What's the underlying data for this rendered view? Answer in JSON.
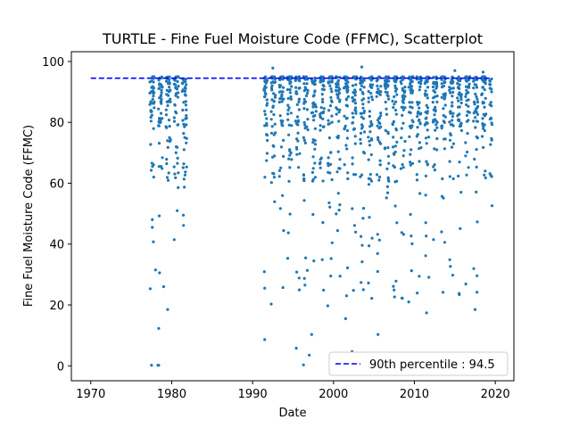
{
  "chart_data": {
    "type": "scatter",
    "title": "TURTLE - Fine Fuel Moisture Code (FFMC), Scatterplot",
    "xlabel": "Date",
    "ylabel": "Fine Fuel Moisture Code (FFMC)",
    "xlim": [
      1967.6,
      2022.3
    ],
    "ylim": [
      -4.9,
      103.2
    ],
    "xticks": [
      1970,
      1980,
      1990,
      2000,
      2010,
      2020
    ],
    "yticks": [
      0,
      20,
      40,
      60,
      80,
      100
    ],
    "grid": false,
    "legend_position": "lower right",
    "series": [
      {
        "name": "",
        "color": "#1f77b4",
        "marker": "point",
        "active_periods": [
          [
            1977.3,
            1982.0
          ],
          [
            1991.4,
            2019.6
          ]
        ],
        "typical_range": [
          60,
          95
        ],
        "notable_points": [
          {
            "x": 1977.5,
            "y": 0.2
          },
          {
            "x": 1978.3,
            "y": 0.2
          },
          {
            "x": 1978.4,
            "y": 0.2
          },
          {
            "x": 1978.4,
            "y": 12.3
          },
          {
            "x": 1979.5,
            "y": 18.5
          },
          {
            "x": 1978.0,
            "y": 31.5
          },
          {
            "x": 1979.0,
            "y": 26.0
          },
          {
            "x": 1977.6,
            "y": 45.5
          },
          {
            "x": 1977.6,
            "y": 48.0
          },
          {
            "x": 1991.5,
            "y": 8.6
          },
          {
            "x": 1991.5,
            "y": 25.5
          },
          {
            "x": 1992.3,
            "y": 20.3
          },
          {
            "x": 1995.4,
            "y": 5.8
          },
          {
            "x": 1996.3,
            "y": 0.3
          },
          {
            "x": 1997.0,
            "y": 3.5
          },
          {
            "x": 1997.3,
            "y": 10.3
          },
          {
            "x": 1999.3,
            "y": 19.7
          },
          {
            "x": 2001.5,
            "y": 15.5
          },
          {
            "x": 2002.3,
            "y": 4.7
          },
          {
            "x": 2005.5,
            "y": 10.3
          },
          {
            "x": 2009.3,
            "y": 21.0
          },
          {
            "x": 2011.5,
            "y": 17.4
          },
          {
            "x": 2017.5,
            "y": 18.5
          },
          {
            "x": 2003.5,
            "y": 98.2
          },
          {
            "x": 1992.5,
            "y": 97.8
          },
          {
            "x": 2015.0,
            "y": 97.0
          },
          {
            "x": 2018.5,
            "y": 96.5
          }
        ]
      }
    ],
    "reference_lines": [
      {
        "label": "90th percentile : 94.5",
        "y": 94.5,
        "x_range": [
          1970,
          2019.6
        ],
        "color": "#0000ff",
        "style": "dashed"
      }
    ]
  }
}
